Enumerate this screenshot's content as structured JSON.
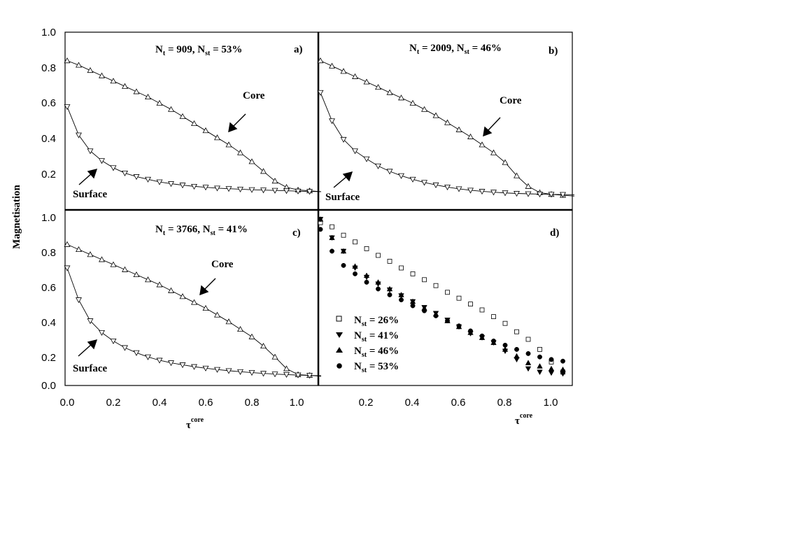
{
  "figure": {
    "ylabel": "Magnetisation",
    "xlabel_left": "τ",
    "xlabel_left_sup": "core",
    "xlabel_right": "τ",
    "xlabel_right_sup": "core",
    "y_ticks_top": [
      "1.0",
      "0.8",
      "0.6",
      "0.4",
      "0.2"
    ],
    "y_ticks_bottom": [
      "1.0",
      "0.8",
      "0.6",
      "0.4",
      "0.2",
      "0.0"
    ],
    "x_ticks_left": [
      "0.0",
      "0.2",
      "0.4",
      "0.6",
      "0.8",
      "1.0"
    ],
    "x_ticks_right": [
      "0.2",
      "0.4",
      "0.6",
      "0.8",
      "1.0"
    ]
  },
  "panels": {
    "a": {
      "tag": "a)",
      "nt_label": "N",
      "nt_sub": "t",
      "nt_value": " = 909, N",
      "nst_sub": "st",
      "nst_value": " = 53%",
      "core_label": "Core",
      "surface_label": "Surface"
    },
    "b": {
      "tag": "b)",
      "nt_label": "N",
      "nt_sub": "t",
      "nt_value": " = 2009, N",
      "nst_sub": "st",
      "nst_value": " = 46%",
      "core_label": "Core",
      "surface_label": "Surface"
    },
    "c": {
      "tag": "c)",
      "nt_label": "N",
      "nt_sub": "t",
      "nt_value": " = 3766, N",
      "nst_sub": "st",
      "nst_value": " = 41%",
      "core_label": "Core",
      "surface_label": "Surface"
    },
    "d": {
      "tag": "d)"
    }
  },
  "legend_d": [
    {
      "sym": "square",
      "label": "N",
      "sub": "st",
      "value": " = 26%"
    },
    {
      "sym": "down",
      "label": "N",
      "sub": "st",
      "value": " = 41%"
    },
    {
      "sym": "up",
      "label": "N",
      "sub": "st",
      "value": " = 46%"
    },
    {
      "sym": "circle",
      "label": "N",
      "sub": "st",
      "value": " = 53%"
    }
  ],
  "chart_data": [
    {
      "type": "line",
      "panel": "a",
      "xlim": [
        0,
        1.1
      ],
      "ylim": [
        0.05,
        1.0
      ],
      "x": [
        0,
        0.05,
        0.1,
        0.15,
        0.2,
        0.25,
        0.3,
        0.35,
        0.4,
        0.45,
        0.5,
        0.55,
        0.6,
        0.65,
        0.7,
        0.75,
        0.8,
        0.85,
        0.9,
        0.95,
        1.0,
        1.05,
        1.1
      ],
      "series": [
        {
          "name": "Core",
          "marker": "up",
          "values": [
            0.85,
            0.825,
            0.795,
            0.765,
            0.735,
            0.705,
            0.675,
            0.645,
            0.61,
            0.575,
            0.535,
            0.495,
            0.455,
            0.415,
            0.375,
            0.33,
            0.28,
            0.225,
            0.17,
            0.135,
            0.12,
            0.115,
            0.11
          ]
        },
        {
          "name": "Surface",
          "marker": "down",
          "values": [
            0.59,
            0.43,
            0.34,
            0.285,
            0.245,
            0.215,
            0.195,
            0.18,
            0.165,
            0.155,
            0.147,
            0.14,
            0.135,
            0.13,
            0.127,
            0.124,
            0.121,
            0.119,
            0.117,
            0.115,
            0.113,
            0.111,
            0.11
          ]
        }
      ]
    },
    {
      "type": "line",
      "panel": "b",
      "xlim": [
        0,
        1.1
      ],
      "ylim": [
        0.05,
        1.0
      ],
      "x": [
        0,
        0.05,
        0.1,
        0.15,
        0.2,
        0.25,
        0.3,
        0.35,
        0.4,
        0.45,
        0.5,
        0.55,
        0.6,
        0.65,
        0.7,
        0.75,
        0.8,
        0.85,
        0.9,
        0.95,
        1.0,
        1.05,
        1.1
      ],
      "series": [
        {
          "name": "Core",
          "marker": "up",
          "values": [
            0.85,
            0.82,
            0.79,
            0.76,
            0.73,
            0.7,
            0.67,
            0.64,
            0.61,
            0.575,
            0.54,
            0.5,
            0.46,
            0.42,
            0.375,
            0.33,
            0.275,
            0.2,
            0.14,
            0.105,
            0.095,
            0.09,
            0.085
          ]
        },
        {
          "name": "Surface",
          "marker": "down",
          "values": [
            0.67,
            0.51,
            0.405,
            0.34,
            0.295,
            0.255,
            0.225,
            0.2,
            0.18,
            0.162,
            0.148,
            0.136,
            0.126,
            0.118,
            0.112,
            0.107,
            0.103,
            0.1,
            0.098,
            0.096,
            0.095,
            0.094,
            0.093
          ]
        }
      ]
    },
    {
      "type": "line",
      "panel": "c",
      "xlim": [
        0,
        1.1
      ],
      "ylim": [
        0,
        1.0
      ],
      "x": [
        0,
        0.05,
        0.1,
        0.15,
        0.2,
        0.25,
        0.3,
        0.35,
        0.4,
        0.45,
        0.5,
        0.55,
        0.6,
        0.65,
        0.7,
        0.75,
        0.8,
        0.85,
        0.9,
        0.95,
        1.0,
        1.05,
        1.1
      ],
      "series": [
        {
          "name": "Core",
          "marker": "up",
          "values": [
            0.84,
            0.81,
            0.78,
            0.75,
            0.72,
            0.69,
            0.66,
            0.63,
            0.6,
            0.565,
            0.53,
            0.495,
            0.46,
            0.42,
            0.38,
            0.335,
            0.29,
            0.235,
            0.17,
            0.1,
            0.065,
            0.06,
            0.055
          ]
        },
        {
          "name": "Surface",
          "marker": "down",
          "values": [
            0.7,
            0.51,
            0.385,
            0.315,
            0.265,
            0.225,
            0.195,
            0.17,
            0.15,
            0.135,
            0.123,
            0.112,
            0.103,
            0.095,
            0.088,
            0.082,
            0.077,
            0.072,
            0.068,
            0.065,
            0.062,
            0.06,
            0.058
          ]
        }
      ]
    },
    {
      "type": "scatter",
      "panel": "d",
      "xlim": [
        0,
        1.1
      ],
      "ylim": [
        0,
        1.0
      ],
      "x": [
        0,
        0.05,
        0.1,
        0.15,
        0.2,
        0.25,
        0.3,
        0.35,
        0.4,
        0.45,
        0.5,
        0.55,
        0.6,
        0.65,
        0.7,
        0.75,
        0.8,
        0.85,
        0.9,
        0.95,
        1.0,
        1.05,
        1.1
      ],
      "series": [
        {
          "name": "N_st = 26%",
          "marker": "square",
          "values": [
            0.97,
            0.945,
            0.895,
            0.855,
            0.815,
            0.775,
            0.74,
            0.7,
            0.665,
            0.63,
            0.595,
            0.555,
            0.52,
            0.485,
            0.45,
            0.41,
            0.37,
            0.32,
            0.275,
            0.215,
            0.14,
            0.08,
            0.06
          ]
        },
        {
          "name": "N_st = 41%",
          "marker": "down",
          "values": [
            0.99,
            0.88,
            0.8,
            0.7,
            0.645,
            0.605,
            0.57,
            0.535,
            0.5,
            0.465,
            0.43,
            0.39,
            0.35,
            0.31,
            0.285,
            0.255,
            0.205,
            0.155,
            0.1,
            0.08,
            0.075,
            0.07,
            0.065
          ]
        },
        {
          "name": "N_st = 46%",
          "marker": "up",
          "values": [
            0.99,
            0.88,
            0.8,
            0.71,
            0.655,
            0.615,
            0.575,
            0.54,
            0.5,
            0.46,
            0.425,
            0.385,
            0.35,
            0.315,
            0.285,
            0.255,
            0.215,
            0.175,
            0.135,
            0.115,
            0.1,
            0.095,
            0.09
          ]
        },
        {
          "name": "N_st = 53%",
          "marker": "circle",
          "values": [
            0.93,
            0.8,
            0.715,
            0.665,
            0.615,
            0.575,
            0.54,
            0.51,
            0.475,
            0.445,
            0.415,
            0.385,
            0.355,
            0.325,
            0.295,
            0.265,
            0.24,
            0.215,
            0.19,
            0.17,
            0.155,
            0.145,
            0.14
          ]
        }
      ]
    }
  ]
}
